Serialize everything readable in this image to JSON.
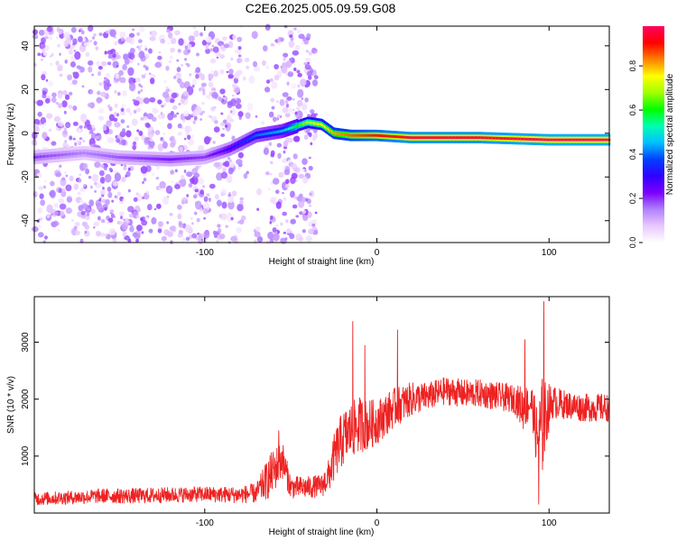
{
  "title": "C2E6.2025.005.09.59.G08",
  "chart_data": [
    {
      "type": "heatmap",
      "id": "spectrogram",
      "title": "C2E6.2025.005.09.59.G08",
      "xlabel": "Height of straight line (km)",
      "ylabel": "Frequency (Hz)",
      "xlim": [
        -199,
        135
      ],
      "ylim": [
        -50,
        49
      ],
      "xticks": [
        -100,
        0,
        100
      ],
      "yticks": [
        -40,
        -20,
        0,
        20,
        40
      ],
      "colorbar": {
        "label": "Normalized spectral amplitude",
        "range": [
          0,
          0.98
        ],
        "ticks": [
          0.0,
          0.2,
          0.4,
          0.6,
          0.8
        ],
        "colors": [
          "#ffffff",
          "#e8c8ff",
          "#b080ff",
          "#7a00ff",
          "#3000ff",
          "#0040ff",
          "#00c0ff",
          "#00ffb0",
          "#00ff00",
          "#a0ff00",
          "#ffff00",
          "#ff8000",
          "#ff0000",
          "#ff0060"
        ]
      },
      "signal_track": {
        "height_km": [
          -199,
          -170,
          -150,
          -120,
          -100,
          -85,
          -70,
          -55,
          -40,
          -32,
          -25,
          -15,
          0,
          20,
          60,
          100,
          135
        ],
        "frequency_hz": [
          -11,
          -9,
          -11,
          -12,
          -11,
          -7,
          -1,
          1,
          5,
          4,
          0,
          -1,
          -1,
          -2,
          -2,
          -3,
          -3
        ],
        "amplitude": [
          0.2,
          0.15,
          0.18,
          0.22,
          0.2,
          0.3,
          0.4,
          0.45,
          0.7,
          0.75,
          0.8,
          0.85,
          0.9,
          0.95,
          0.95,
          0.98,
          0.98
        ]
      },
      "noise_region_km": [
        -199,
        -35
      ],
      "noise_amplitude": 0.12
    },
    {
      "type": "line",
      "id": "snr",
      "xlabel": "Height of straight line (km)",
      "ylabel": "SNR (10 * v/v)",
      "xlim": [
        -199,
        135
      ],
      "ylim": [
        0,
        3800
      ],
      "xticks": [
        -100,
        0,
        100
      ],
      "yticks": [
        1000,
        2000,
        3000
      ],
      "color": "#ee2222",
      "series": [
        {
          "name": "SNR",
          "height_km": [
            -199,
            -180,
            -160,
            -140,
            -120,
            -100,
            -80,
            -70,
            -62,
            -55,
            -50,
            -40,
            -32,
            -28,
            -24,
            -20,
            -15,
            -10,
            -5,
            0,
            10,
            20,
            30,
            40,
            50,
            60,
            70,
            80,
            85,
            90,
            93,
            96,
            99,
            102,
            110,
            120,
            135
          ],
          "mean": [
            250,
            270,
            300,
            300,
            320,
            330,
            320,
            350,
            650,
            950,
            450,
            450,
            480,
            650,
            1050,
            1300,
            1450,
            1550,
            1550,
            1600,
            1850,
            2000,
            2050,
            2150,
            2100,
            2100,
            2050,
            2000,
            1850,
            1950,
            1300,
            1500,
            1800,
            1950,
            1900,
            1850,
            1850
          ],
          "spread": [
            120,
            120,
            130,
            140,
            140,
            140,
            150,
            180,
            400,
            350,
            200,
            200,
            200,
            300,
            450,
            500,
            500,
            500,
            450,
            400,
            350,
            300,
            250,
            250,
            250,
            250,
            250,
            250,
            400,
            300,
            600,
            900,
            500,
            300,
            250,
            250,
            250
          ],
          "spikes": [
            {
              "height_km": -57,
              "value": 1450
            },
            {
              "height_km": -14,
              "value": 3370
            },
            {
              "height_km": -7,
              "value": 2950
            },
            {
              "height_km": 12,
              "value": 3220
            },
            {
              "height_km": 86,
              "value": 3050
            },
            {
              "height_km": 97,
              "value": 3720
            },
            {
              "height_km": 94,
              "value": 150
            }
          ]
        }
      ]
    }
  ]
}
